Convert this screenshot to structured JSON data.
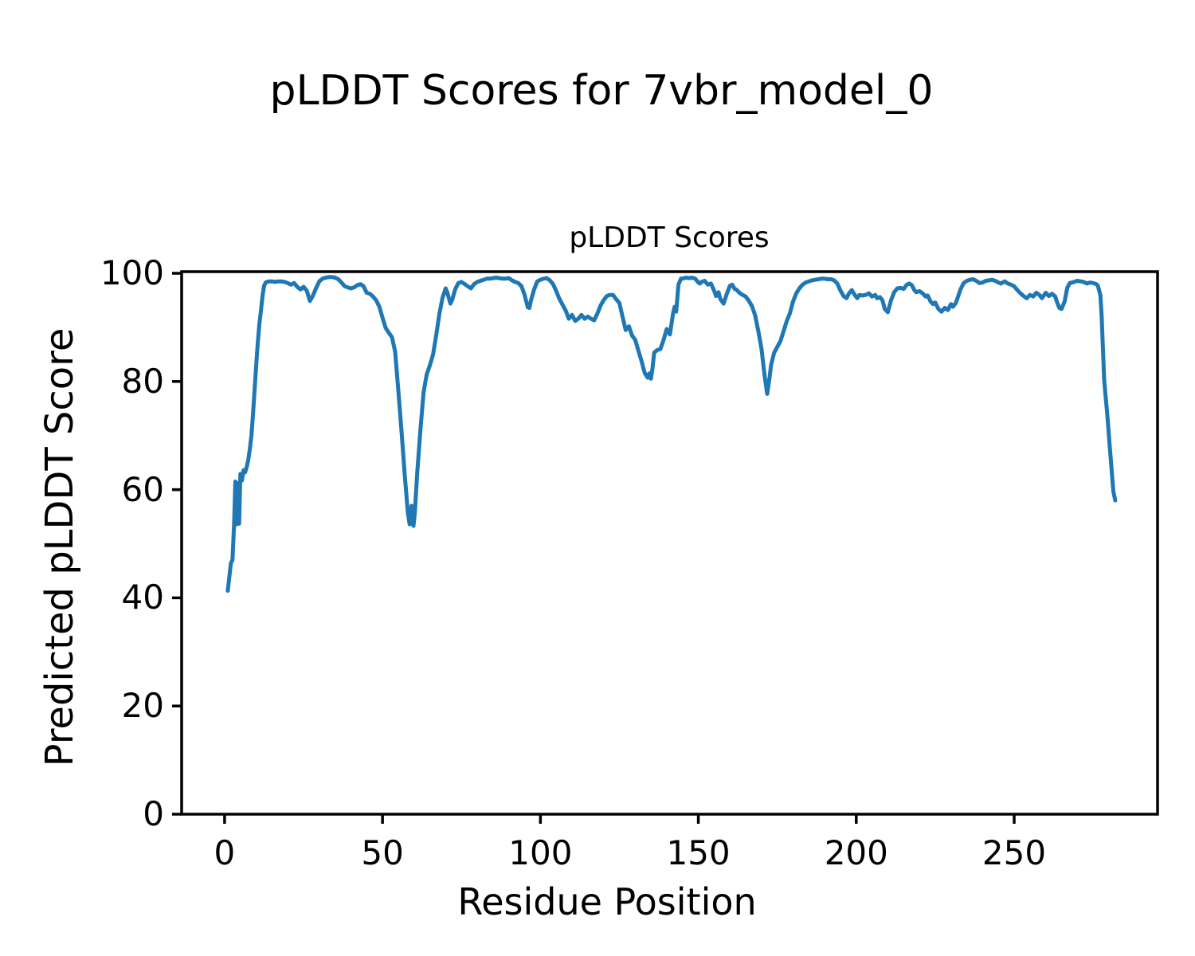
{
  "figure_title": "pLDDT Scores for 7vbr_model_0",
  "chart_data": {
    "type": "line",
    "title": "pLDDT Scores",
    "xlabel": "Residue Position",
    "ylabel": "Predicted pLDDT Score",
    "line_color": "#1f77b4",
    "axis_color": "#000000",
    "grid": false,
    "legend": "none",
    "xlim": [
      -13.6,
      295.4
    ],
    "ylim": [
      0,
      100.3
    ],
    "x_ticks": [
      0,
      50,
      100,
      150,
      200,
      250
    ],
    "y_ticks": [
      0,
      20,
      40,
      60,
      80,
      100
    ],
    "points": [
      [
        1,
        41.3
      ],
      [
        2,
        46.4
      ],
      [
        2.5,
        47.0
      ],
      [
        3,
        53.4
      ],
      [
        3.4,
        61.5
      ],
      [
        3.8,
        53.6
      ],
      [
        4.2,
        61.2
      ],
      [
        4.6,
        53.7
      ],
      [
        5,
        62.9
      ],
      [
        5.5,
        61.7
      ],
      [
        6,
        63.6
      ],
      [
        6.5,
        63.2
      ],
      [
        7,
        64.2
      ],
      [
        7.5,
        65.5
      ],
      [
        8,
        67.5
      ],
      [
        8.5,
        70
      ],
      [
        9,
        74
      ],
      [
        9.5,
        78.5
      ],
      [
        10,
        83
      ],
      [
        10.5,
        87
      ],
      [
        11,
        90.5
      ],
      [
        11.5,
        93
      ],
      [
        12,
        95.8
      ],
      [
        12.5,
        97.7
      ],
      [
        13,
        98.3
      ],
      [
        14,
        98.5
      ],
      [
        15,
        98.5
      ],
      [
        16,
        98.4
      ],
      [
        17,
        98.5
      ],
      [
        18,
        98.5
      ],
      [
        19,
        98.4
      ],
      [
        20,
        98.2
      ],
      [
        21,
        97.9
      ],
      [
        22,
        98.2
      ],
      [
        23,
        97.5
      ],
      [
        24,
        97.0
      ],
      [
        25,
        97.5
      ],
      [
        26,
        96.8
      ],
      [
        27,
        94.9
      ],
      [
        28,
        95.9
      ],
      [
        29,
        97.3
      ],
      [
        30,
        98.5
      ],
      [
        31,
        99.0
      ],
      [
        32,
        99.2
      ],
      [
        33,
        99.3
      ],
      [
        34,
        99.3
      ],
      [
        35,
        99.2
      ],
      [
        36,
        98.9
      ],
      [
        37,
        98.3
      ],
      [
        38,
        97.6
      ],
      [
        39,
        97.4
      ],
      [
        40,
        97.2
      ],
      [
        41,
        97.4
      ],
      [
        42,
        97.8
      ],
      [
        43,
        98.0
      ],
      [
        44,
        97.6
      ],
      [
        45,
        96.4
      ],
      [
        46,
        96.2
      ],
      [
        47,
        95.7
      ],
      [
        48,
        95.0
      ],
      [
        49,
        93.8
      ],
      [
        50,
        91.8
      ],
      [
        51,
        89.9
      ],
      [
        52,
        89.0
      ],
      [
        53,
        88.2
      ],
      [
        54,
        85.5
      ],
      [
        55,
        78.3
      ],
      [
        56,
        71.0
      ],
      [
        57,
        63.0
      ],
      [
        58,
        55.8
      ],
      [
        58.6,
        53.6
      ],
      [
        59.2,
        57.0
      ],
      [
        59.8,
        53.3
      ],
      [
        60.2,
        55.5
      ],
      [
        61,
        63.1
      ],
      [
        62,
        71.0
      ],
      [
        63,
        78.0
      ],
      [
        64,
        81.3
      ],
      [
        65,
        83.0
      ],
      [
        66,
        85.0
      ],
      [
        67,
        88.5
      ],
      [
        68,
        92.5
      ],
      [
        69,
        95.5
      ],
      [
        70,
        97.2
      ],
      [
        70.5,
        96.5
      ],
      [
        71,
        95.4
      ],
      [
        71.5,
        94.4
      ],
      [
        72,
        95.0
      ],
      [
        73,
        97.0
      ],
      [
        74,
        98.2
      ],
      [
        75,
        98.4
      ],
      [
        76,
        98.0
      ],
      [
        77,
        97.6
      ],
      [
        78,
        97.2
      ],
      [
        79,
        98.0
      ],
      [
        80,
        98.4
      ],
      [
        81,
        98.6
      ],
      [
        82,
        98.8
      ],
      [
        83,
        99.0
      ],
      [
        84,
        99.0
      ],
      [
        85,
        99.1
      ],
      [
        86,
        99.2
      ],
      [
        87,
        99.1
      ],
      [
        88,
        99.0
      ],
      [
        89,
        99.0
      ],
      [
        90,
        99.1
      ],
      [
        91,
        98.7
      ],
      [
        92,
        98.4
      ],
      [
        93,
        98.2
      ],
      [
        94,
        97.6
      ],
      [
        95,
        96.0
      ],
      [
        96,
        93.7
      ],
      [
        96.5,
        93.6
      ],
      [
        97,
        95.0
      ],
      [
        98,
        97.0
      ],
      [
        99,
        98.5
      ],
      [
        100,
        98.8
      ],
      [
        101,
        99.0
      ],
      [
        102,
        99.1
      ],
      [
        103,
        98.7
      ],
      [
        104,
        98.0
      ],
      [
        105,
        96.7
      ],
      [
        106,
        95.3
      ],
      [
        107,
        94.2
      ],
      [
        108,
        93.1
      ],
      [
        109,
        91.6
      ],
      [
        110,
        92.3
      ],
      [
        111,
        91.2
      ],
      [
        112,
        91.6
      ],
      [
        113,
        92.3
      ],
      [
        114,
        91.6
      ],
      [
        115,
        92.0
      ],
      [
        116,
        91.6
      ],
      [
        117,
        91.3
      ],
      [
        118,
        92.5
      ],
      [
        119,
        94.0
      ],
      [
        120,
        95.0
      ],
      [
        121,
        95.8
      ],
      [
        122,
        96.0
      ],
      [
        123,
        96.0
      ],
      [
        124,
        95.2
      ],
      [
        125,
        94.5
      ],
      [
        126,
        92.0
      ],
      [
        127,
        89.5
      ],
      [
        128,
        90.2
      ],
      [
        129,
        88.5
      ],
      [
        130,
        87.7
      ],
      [
        131,
        85.7
      ],
      [
        132,
        83.8
      ],
      [
        133,
        81.6
      ],
      [
        134,
        80.7
      ],
      [
        134.5,
        81.5
      ],
      [
        135,
        80.5
      ],
      [
        135.5,
        82.5
      ],
      [
        136,
        85.3
      ],
      [
        137,
        85.8
      ],
      [
        138,
        86.0
      ],
      [
        139,
        87.7
      ],
      [
        140,
        89.7
      ],
      [
        141,
        88.7
      ],
      [
        142,
        92.6
      ],
      [
        142.5,
        93.8
      ],
      [
        143,
        92.9
      ],
      [
        143.7,
        97.9
      ],
      [
        144.5,
        99.0
      ],
      [
        145,
        99.0
      ],
      [
        146,
        99.2
      ],
      [
        147,
        99.1
      ],
      [
        148,
        99.2
      ],
      [
        149,
        99.0
      ],
      [
        150,
        98.3
      ],
      [
        150.5,
        98.1
      ],
      [
        151,
        98.4
      ],
      [
        152,
        98.6
      ],
      [
        153,
        97.9
      ],
      [
        154,
        98.1
      ],
      [
        155,
        96.8
      ],
      [
        155.6,
        95.8
      ],
      [
        156.4,
        96.5
      ],
      [
        157,
        95.2
      ],
      [
        158,
        94.4
      ],
      [
        159,
        96.2
      ],
      [
        160,
        97.7
      ],
      [
        160.7,
        97.9
      ],
      [
        161.5,
        97.1
      ],
      [
        162,
        97.0
      ],
      [
        163,
        96.4
      ],
      [
        164,
        96.0
      ],
      [
        165,
        95.7
      ],
      [
        166,
        94.9
      ],
      [
        167,
        93.9
      ],
      [
        168,
        92.2
      ],
      [
        169,
        89.3
      ],
      [
        170,
        86.0
      ],
      [
        171,
        81.0
      ],
      [
        171.8,
        77.7
      ],
      [
        172.5,
        80.5
      ],
      [
        173,
        83.0
      ],
      [
        174,
        85.3
      ],
      [
        175,
        86.4
      ],
      [
        176,
        87.5
      ],
      [
        177,
        89.3
      ],
      [
        178,
        91.2
      ],
      [
        179,
        92.6
      ],
      [
        180,
        94.8
      ],
      [
        181,
        96.3
      ],
      [
        182,
        97.2
      ],
      [
        183,
        97.9
      ],
      [
        184,
        98.3
      ],
      [
        185,
        98.5
      ],
      [
        186,
        98.7
      ],
      [
        187,
        98.8
      ],
      [
        188,
        98.9
      ],
      [
        189,
        99.0
      ],
      [
        190,
        99.0
      ],
      [
        191,
        98.9
      ],
      [
        192,
        98.9
      ],
      [
        193,
        98.7
      ],
      [
        194,
        98.1
      ],
      [
        195,
        96.8
      ],
      [
        196,
        95.8
      ],
      [
        196.9,
        95.4
      ],
      [
        197.7,
        96.3
      ],
      [
        198.6,
        96.9
      ],
      [
        199.4,
        96.1
      ],
      [
        200.3,
        95.4
      ],
      [
        201,
        96.0
      ],
      [
        202,
        95.9
      ],
      [
        203,
        96.0
      ],
      [
        204,
        96.3
      ],
      [
        205,
        95.7
      ],
      [
        206,
        96.0
      ],
      [
        206.6,
        95.4
      ],
      [
        207.5,
        95.6
      ],
      [
        208.3,
        95.0
      ],
      [
        209,
        93.4
      ],
      [
        210,
        92.8
      ],
      [
        211,
        95.0
      ],
      [
        212,
        96.5
      ],
      [
        213,
        97.2
      ],
      [
        214,
        97.3
      ],
      [
        215,
        97.1
      ],
      [
        216,
        97.9
      ],
      [
        216.8,
        98.1
      ],
      [
        217.6,
        97.8
      ],
      [
        218.4,
        96.9
      ],
      [
        219,
        96.5
      ],
      [
        220,
        96.7
      ],
      [
        221,
        96.3
      ],
      [
        222,
        95.7
      ],
      [
        222.6,
        95.9
      ],
      [
        223.5,
        94.8
      ],
      [
        224.3,
        94.3
      ],
      [
        225,
        94.6
      ],
      [
        226,
        93.4
      ],
      [
        227,
        92.9
      ],
      [
        228,
        93.6
      ],
      [
        229,
        93.2
      ],
      [
        230,
        94.3
      ],
      [
        230.6,
        93.8
      ],
      [
        231.5,
        94.5
      ],
      [
        232,
        95.3
      ],
      [
        233,
        97.0
      ],
      [
        234,
        98.2
      ],
      [
        235,
        98.6
      ],
      [
        236,
        98.8
      ],
      [
        237,
        98.9
      ],
      [
        238,
        98.6
      ],
      [
        239,
        98.2
      ],
      [
        240,
        98.3
      ],
      [
        241,
        98.6
      ],
      [
        242,
        98.7
      ],
      [
        243,
        98.8
      ],
      [
        244,
        98.6
      ],
      [
        245,
        98.3
      ],
      [
        245.8,
        98.1
      ],
      [
        247,
        98.5
      ],
      [
        248,
        98.1
      ],
      [
        249,
        97.9
      ],
      [
        250,
        97.6
      ],
      [
        251,
        96.9
      ],
      [
        252,
        96.3
      ],
      [
        253,
        95.8
      ],
      [
        254,
        95.4
      ],
      [
        255,
        96.0
      ],
      [
        256,
        95.7
      ],
      [
        257,
        96.4
      ],
      [
        258,
        96.0
      ],
      [
        258.8,
        95.4
      ],
      [
        260,
        96.4
      ],
      [
        261,
        95.8
      ],
      [
        262,
        96.2
      ],
      [
        263,
        95.7
      ],
      [
        263.5,
        94.8
      ],
      [
        264.3,
        93.6
      ],
      [
        265,
        93.4
      ],
      [
        266,
        94.8
      ],
      [
        266.8,
        97.3
      ],
      [
        267.6,
        98.2
      ],
      [
        269,
        98.4
      ],
      [
        270,
        98.6
      ],
      [
        271,
        98.5
      ],
      [
        272,
        98.4
      ],
      [
        273,
        98.1
      ],
      [
        274,
        98.3
      ],
      [
        275,
        98.2
      ],
      [
        276,
        98.0
      ],
      [
        276.5,
        97.7
      ],
      [
        277.3,
        96.0
      ],
      [
        277.7,
        92.2
      ],
      [
        278.1,
        86.2
      ],
      [
        278.5,
        80.3
      ],
      [
        279,
        76.9
      ],
      [
        279.4,
        74.4
      ],
      [
        279.8,
        71.5
      ],
      [
        280.2,
        68.5
      ],
      [
        280.6,
        65.6
      ],
      [
        281,
        62.6
      ],
      [
        281.4,
        59.7
      ],
      [
        282,
        58.0
      ]
    ]
  }
}
